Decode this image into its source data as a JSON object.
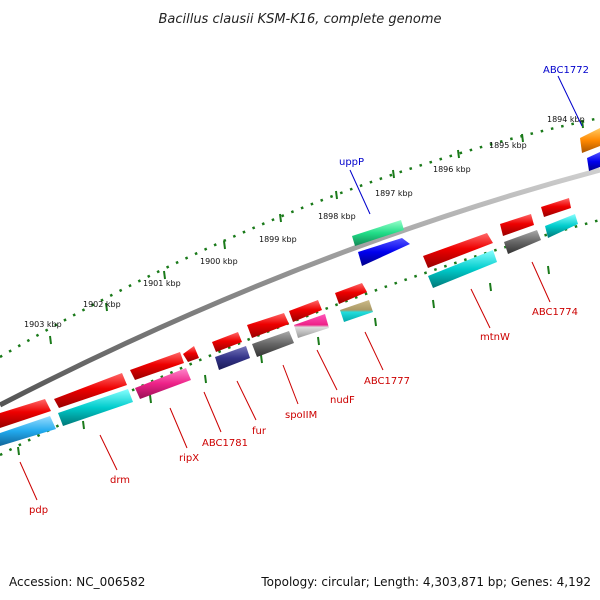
{
  "title": "Bacillus clausii KSM-K16, complete genome",
  "footer": {
    "accession": "Accession: NC_006582",
    "summary": "Topology: circular; Length: 4,303,871 bp; Genes: 4,192"
  },
  "ticks": [
    "1894 kbp",
    "1895 kbp",
    "1896 kbp",
    "1897 kbp",
    "1898 kbp",
    "1899 kbp",
    "1900 kbp",
    "1901 kbp",
    "1902 kbp",
    "1903 kbp"
  ],
  "gene_labels_outer": [
    {
      "text": "ABC1772",
      "color": "#0000cc"
    },
    {
      "text": "uppP",
      "color": "#0000cc"
    }
  ],
  "gene_labels_inner": [
    {
      "text": "ABC1774",
      "color": "#cc0000"
    },
    {
      "text": "mtnW",
      "color": "#cc0000"
    },
    {
      "text": "ABC1777",
      "color": "#cc0000"
    },
    {
      "text": "nudF",
      "color": "#cc0000"
    },
    {
      "text": "spoIIM",
      "color": "#cc0000"
    },
    {
      "text": "fur",
      "color": "#cc0000"
    },
    {
      "text": "ABC1781",
      "color": "#cc0000"
    },
    {
      "text": "ripX",
      "color": "#cc0000"
    },
    {
      "text": "drm",
      "color": "#cc0000"
    },
    {
      "text": "pdp",
      "color": "#cc0000"
    }
  ],
  "colors": {
    "backbone": "#8a8a8a",
    "tick": "#1a7a1a",
    "forward_gene": "#ee0000",
    "cog_cyan": "#00cccc",
    "cog_blue": "#0000ee",
    "cog_green": "#22dd88",
    "cog_orange": "#ff8800",
    "cog_gray": "#666666",
    "cog_navy": "#333388",
    "cog_pink": "#ee2288",
    "cog_sky": "#22aaee",
    "cog_tan": "#aa9966"
  }
}
